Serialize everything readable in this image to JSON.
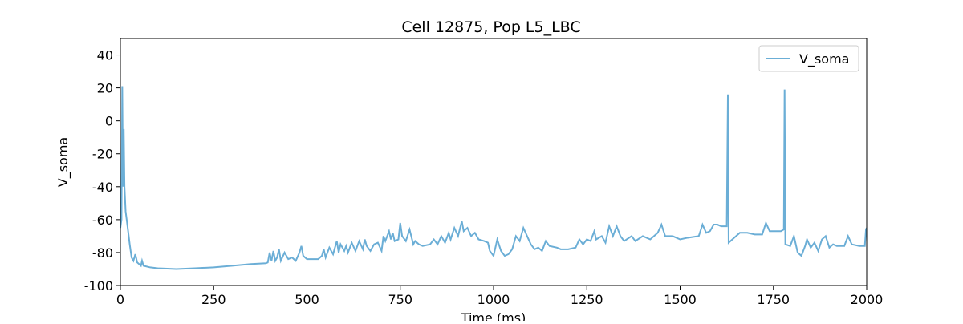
{
  "chart_data": {
    "type": "line",
    "title": "Cell 12875, Pop L5_LBC",
    "x_label": "Time (ms)",
    "y_label": "V_soma",
    "x": [
      0,
      3,
      5,
      7,
      9,
      11,
      14,
      18,
      25,
      30,
      35,
      40,
      45,
      50,
      55,
      58,
      62,
      80,
      100,
      150,
      200,
      250,
      300,
      350,
      390,
      395,
      400,
      405,
      410,
      415,
      420,
      425,
      430,
      440,
      450,
      460,
      470,
      480,
      485,
      490,
      500,
      510,
      530,
      540,
      545,
      550,
      560,
      570,
      580,
      585,
      590,
      600,
      605,
      610,
      620,
      630,
      640,
      650,
      655,
      660,
      670,
      680,
      690,
      700,
      705,
      710,
      720,
      725,
      730,
      735,
      745,
      750,
      755,
      765,
      775,
      785,
      790,
      800,
      810,
      830,
      840,
      850,
      860,
      870,
      880,
      885,
      895,
      905,
      915,
      920,
      930,
      940,
      950,
      960,
      975,
      985,
      990,
      1000,
      1010,
      1020,
      1030,
      1040,
      1050,
      1060,
      1070,
      1080,
      1090,
      1100,
      1110,
      1120,
      1130,
      1140,
      1150,
      1170,
      1180,
      1200,
      1220,
      1230,
      1240,
      1250,
      1260,
      1270,
      1275,
      1290,
      1300,
      1310,
      1320,
      1330,
      1340,
      1350,
      1370,
      1380,
      1400,
      1420,
      1440,
      1450,
      1460,
      1480,
      1500,
      1520,
      1550,
      1560,
      1570,
      1580,
      1590,
      1600,
      1610,
      1625,
      1628,
      1630,
      1640,
      1660,
      1680,
      1700,
      1720,
      1730,
      1740,
      1760,
      1770,
      1778,
      1780,
      1782,
      1795,
      1805,
      1815,
      1825,
      1835,
      1840,
      1850,
      1860,
      1870,
      1880,
      1890,
      1900,
      1910,
      1920,
      1940,
      1950,
      1960,
      1980,
      1995,
      1998,
      2000
    ],
    "series": [
      {
        "name": "V_soma",
        "color": "#6baed6",
        "values": [
          -65,
          -60,
          21,
          -40,
          -5,
          -40,
          -55,
          -62,
          -75,
          -83,
          -85,
          -81,
          -86,
          -87,
          -88,
          -85,
          -88,
          -89,
          -89.5,
          -90,
          -89.5,
          -89,
          -88,
          -87,
          -86.5,
          -86,
          -80,
          -85,
          -79,
          -85,
          -83,
          -78,
          -85,
          -80,
          -84,
          -83,
          -85,
          -80,
          -76,
          -82,
          -84,
          -84,
          -84,
          -82,
          -78,
          -83,
          -77,
          -81,
          -73,
          -80,
          -75,
          -79,
          -76,
          -80,
          -74,
          -79,
          -73,
          -78,
          -72,
          -76,
          -79,
          -75,
          -74,
          -79,
          -70,
          -73,
          -67,
          -72,
          -68,
          -73,
          -72,
          -62,
          -70,
          -73,
          -66,
          -75,
          -73,
          -75,
          -76,
          -75,
          -72,
          -75,
          -70,
          -74,
          -68,
          -72,
          -65,
          -70,
          -61,
          -67,
          -65,
          -70,
          -68,
          -72,
          -73,
          -74,
          -79,
          -82,
          -72,
          -79,
          -82,
          -81,
          -78,
          -70,
          -73,
          -65,
          -70,
          -75,
          -78,
          -77,
          -79,
          -73,
          -76,
          -77,
          -78,
          -78,
          -77,
          -72,
          -75,
          -72,
          -73,
          -67,
          -72,
          -70,
          -74,
          -64,
          -70,
          -64,
          -70,
          -73,
          -70,
          -73,
          -70,
          -72,
          -68,
          -63,
          -70,
          -70,
          -72,
          -71,
          -70,
          -63,
          -68,
          -67,
          -63,
          -63,
          -64,
          -64,
          16,
          -74,
          -72,
          -68,
          -68,
          -69,
          -69,
          -62,
          -67,
          -67,
          -67,
          -66,
          19,
          -75,
          -76,
          -70,
          -80,
          -82,
          -76,
          -72,
          -77,
          -74,
          -79,
          -72,
          -70,
          -77,
          -75,
          -76,
          -76,
          -70,
          -75,
          -76,
          -76,
          -66,
          -65
        ]
      }
    ],
    "xlim": [
      0,
      2000
    ],
    "xticks": [
      0,
      250,
      500,
      750,
      1000,
      1250,
      1500,
      1750,
      2000
    ],
    "ylim": [
      -100,
      50
    ],
    "yticks": [
      -100,
      -80,
      -60,
      -40,
      -20,
      0,
      20,
      40
    ],
    "legend": "upper right"
  }
}
